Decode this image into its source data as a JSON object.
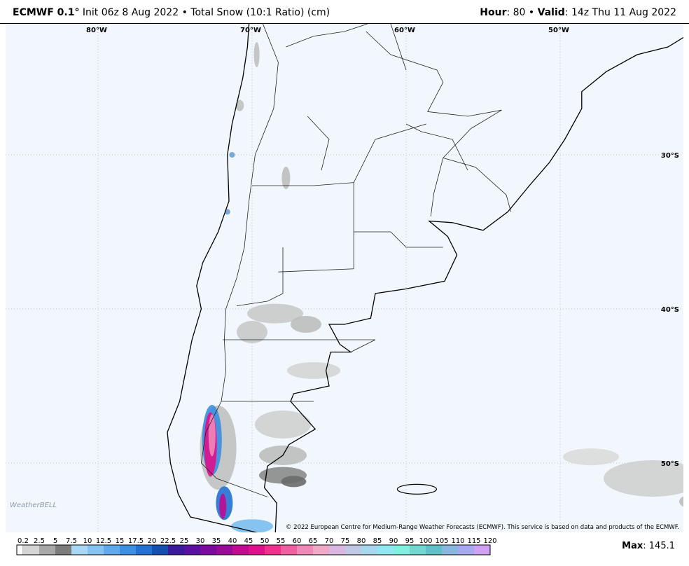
{
  "header": {
    "model": "ECMWF 0.1°",
    "init": "Init 06z 8 Aug 2022",
    "separator": "•",
    "product": "Total Snow (10:1 Ratio) (cm)",
    "hour_label": "Hour",
    "hour": ": 80",
    "valid_label": "Valid",
    "valid": ": 14z Thu 11 Aug 2022"
  },
  "map": {
    "longitude_labels": [
      "80°W",
      "70°W",
      "60°W",
      "50°W"
    ],
    "latitude_labels": [
      "30°S",
      "40°S",
      "50°S"
    ],
    "logo": "WeatherBELL",
    "credit": "© 2022 European Centre for Medium-Range Weather Forecasts (ECMWF). This service is based on data and products of the ECMWF."
  },
  "legend": {
    "labels": [
      "0.2",
      "2.5",
      "5",
      "7.5",
      "10",
      "12.5",
      "15",
      "17.5",
      "20",
      "22.5",
      "25",
      "30",
      "35",
      "40",
      "45",
      "50",
      "55",
      "60",
      "65",
      "70",
      "75",
      "80",
      "85",
      "90",
      "95",
      "100",
      "105",
      "110",
      "115",
      "120"
    ],
    "colors": [
      "#d4d4d4",
      "#a8a8a8",
      "#7c7c7c",
      "#a9d8f7",
      "#84c3f2",
      "#5eaaec",
      "#3c8fe2",
      "#2270d2",
      "#1450b2",
      "#3a1a9a",
      "#5a10a0",
      "#7a0aa0",
      "#9a0a98",
      "#c00a90",
      "#e0108c",
      "#f0308c",
      "#f060a0",
      "#f088b8",
      "#f0a8c8",
      "#d8b8e0",
      "#c0c8e8",
      "#a8d8f0",
      "#90e8f0",
      "#80f0e0",
      "#70d8d0",
      "#60c0c8",
      "#88b8e0",
      "#a8a8f0",
      "#d0a0f4"
    ]
  },
  "footer": {
    "max_label": "Max",
    "max": ": 145.1"
  }
}
